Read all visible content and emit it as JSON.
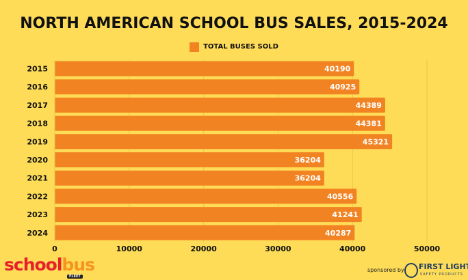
{
  "chart_data": {
    "type": "bar",
    "orientation": "horizontal",
    "title": "NORTH AMERICAN SCHOOL BUS SALES, 2015-2024",
    "categories": [
      "2015",
      "2016",
      "2017",
      "2018",
      "2019",
      "2020",
      "2021",
      "2022",
      "2023",
      "2024"
    ],
    "series": [
      {
        "name": "TOTAL BUSES SOLD",
        "values": [
          40190,
          40925,
          44389,
          44381,
          45321,
          36204,
          36204,
          40556,
          41241,
          40287
        ],
        "color": "#f28322"
      }
    ],
    "xlim": [
      0,
      50000
    ],
    "xticks": [
      "0",
      "10000",
      "20000",
      "30000",
      "40000",
      "50000"
    ],
    "grid": true,
    "legend": "top-center",
    "data_labels": true
  },
  "branding": {
    "logo": "schoolbus FLEET",
    "sponsored_by": "sponsored by",
    "sponsor": "FIRST LIGHT",
    "sponsor_sub": "SAFETY PRODUCTS"
  },
  "colors": {
    "background": "#fedc58",
    "bar": "#f28322",
    "grid": "#e8c64a"
  }
}
